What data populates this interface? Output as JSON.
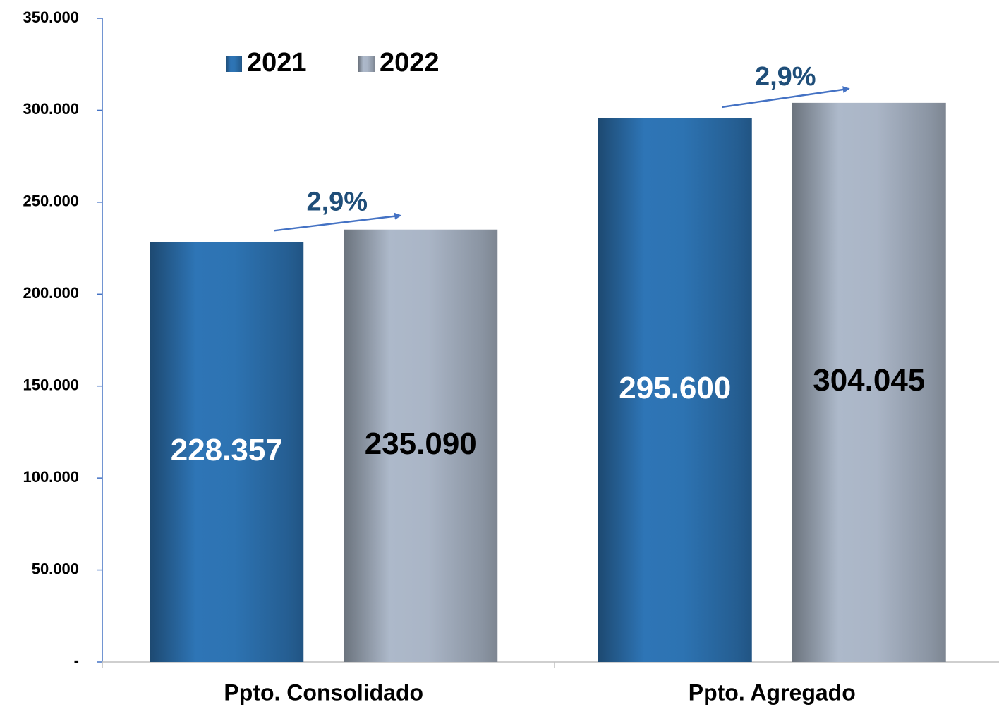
{
  "chart_data": {
    "type": "bar",
    "categories": [
      "Ppto. Consolidado",
      "Ppto. Agregado"
    ],
    "series": [
      {
        "name": "2021",
        "color": "#2e75b6",
        "values": [
          228357,
          295600
        ],
        "value_labels": [
          "228.357",
          "295.600"
        ],
        "label_color": "#ffffff"
      },
      {
        "name": "2022",
        "color": "#adb9ca",
        "values": [
          235090,
          304045
        ],
        "value_labels": [
          "235.090",
          "304.045"
        ],
        "label_color": "#000000"
      }
    ],
    "annotations": [
      {
        "text": "2,9%"
      },
      {
        "text": "2,9%"
      }
    ],
    "ylim": [
      0,
      350000
    ],
    "yticks": [
      {
        "value": 0,
        "label": "-"
      },
      {
        "value": 50000,
        "label": "50.000"
      },
      {
        "value": 100000,
        "label": "100.000"
      },
      {
        "value": 150000,
        "label": "150.000"
      },
      {
        "value": 200000,
        "label": "200.000"
      },
      {
        "value": 250000,
        "label": "250.000"
      },
      {
        "value": 300000,
        "label": "300.000"
      },
      {
        "value": 350000,
        "label": "350.000"
      }
    ],
    "legend": "top-left",
    "grid": false
  }
}
